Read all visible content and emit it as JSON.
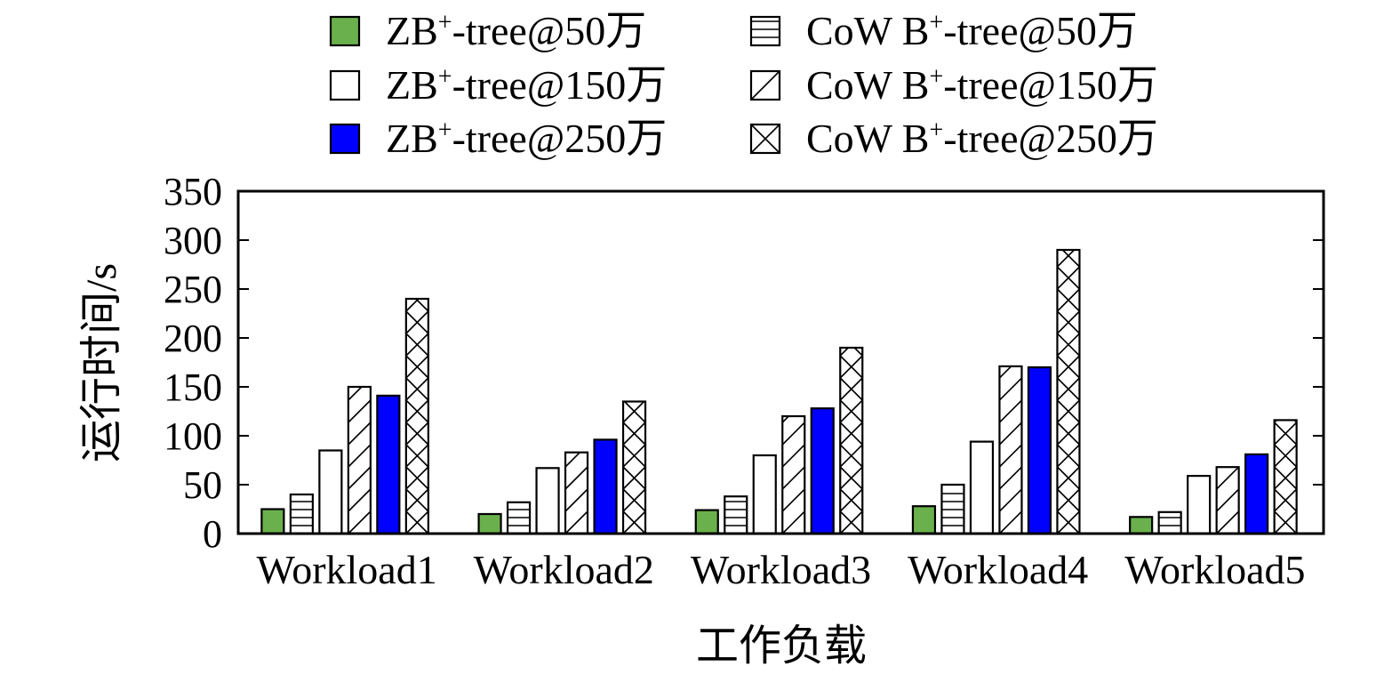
{
  "chart_data": {
    "type": "bar",
    "title": "",
    "xlabel": "工作负载",
    "ylabel": "运行时间/s",
    "ylim": [
      0,
      350
    ],
    "yticks": [
      "0",
      "50",
      "100",
      "150",
      "200",
      "250",
      "300",
      "350"
    ],
    "categories": [
      "Workload1",
      "Workload2",
      "Workload3",
      "Workload4",
      "Workload5"
    ],
    "legend_position": "top",
    "series": [
      {
        "name_main": "ZB",
        "name_sup": "+",
        "name_rest": "-tree@50万",
        "values": [
          25,
          20,
          24,
          28,
          17
        ],
        "fill": "#6ab04c",
        "pattern": "solid"
      },
      {
        "name_main": "CoW B",
        "name_sup": "+",
        "name_rest": "-tree@50万",
        "values": [
          40,
          32,
          38,
          50,
          22
        ],
        "fill": "#ffffff",
        "pattern": "horizontal"
      },
      {
        "name_main": "ZB",
        "name_sup": "+",
        "name_rest": "-tree@150万",
        "values": [
          85,
          67,
          80,
          94,
          59
        ],
        "fill": "#ffffff",
        "pattern": "none"
      },
      {
        "name_main": "CoW B",
        "name_sup": "+",
        "name_rest": "-tree@150万",
        "values": [
          150,
          83,
          120,
          171,
          68
        ],
        "fill": "#ffffff",
        "pattern": "diagonal"
      },
      {
        "name_main": "ZB",
        "name_sup": "+",
        "name_rest": "-tree@250万",
        "values": [
          141,
          96,
          128,
          170,
          81
        ],
        "fill": "#0000ff",
        "pattern": "solid"
      },
      {
        "name_main": "CoW B",
        "name_sup": "+",
        "name_rest": "-tree@250万",
        "values": [
          240,
          135,
          190,
          290,
          116
        ],
        "fill": "#ffffff",
        "pattern": "cross"
      }
    ]
  }
}
